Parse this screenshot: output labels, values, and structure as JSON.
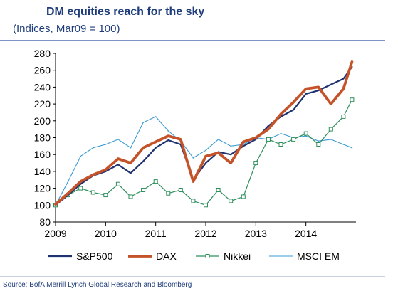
{
  "header": {
    "title": "DM equities reach for the sky",
    "subtitle": "(Indices, Mar09 = 100)"
  },
  "footer": {
    "source": "Source: BofA Merrill Lynch Global Research and Bloomberg"
  },
  "chart_data": {
    "type": "line",
    "title": "DM equities reach for the sky",
    "subtitle": "(Indices, Mar09 = 100)",
    "xlabel": "",
    "ylabel": "",
    "xlim": [
      2009.0,
      2015.0
    ],
    "ylim": [
      80,
      280
    ],
    "x_ticks": [
      2009,
      2010,
      2011,
      2012,
      2013,
      2014
    ],
    "x_tick_labels": [
      "2009",
      "2010",
      "2011",
      "2012",
      "2013",
      "2014"
    ],
    "y_ticks": [
      80,
      100,
      120,
      140,
      160,
      180,
      200,
      220,
      240,
      260,
      280
    ],
    "y_tick_labels": [
      "80",
      "100",
      "120",
      "140",
      "160",
      "180",
      "200",
      "220",
      "240",
      "260",
      "280"
    ],
    "grid": false,
    "legend_position": "bottom",
    "x": [
      2009.0,
      2009.25,
      2009.5,
      2009.75,
      2010.0,
      2010.25,
      2010.5,
      2010.75,
      2011.0,
      2011.25,
      2011.5,
      2011.75,
      2012.0,
      2012.25,
      2012.5,
      2012.75,
      2013.0,
      2013.25,
      2013.5,
      2013.75,
      2014.0,
      2014.25,
      2014.5,
      2014.75,
      2014.92
    ],
    "series": [
      {
        "name": "S&P500",
        "color": "#1f3370",
        "values": [
          100,
          112,
          125,
          135,
          140,
          148,
          138,
          152,
          168,
          177,
          172,
          130,
          150,
          163,
          160,
          170,
          178,
          194,
          205,
          213,
          232,
          236,
          243,
          250,
          264
        ]
      },
      {
        "name": "DAX",
        "color": "#c5532a",
        "values": [
          101,
          114,
          128,
          136,
          142,
          155,
          150,
          168,
          175,
          182,
          178,
          128,
          158,
          162,
          150,
          175,
          180,
          190,
          208,
          222,
          238,
          240,
          220,
          238,
          270
        ]
      },
      {
        "name": "Nikkei",
        "color": "#2f8f5c",
        "values": [
          100,
          112,
          120,
          115,
          112,
          125,
          110,
          118,
          128,
          114,
          118,
          105,
          100,
          118,
          105,
          110,
          150,
          178,
          172,
          178,
          185,
          172,
          190,
          205,
          225
        ]
      },
      {
        "name": "MSCI EM",
        "color": "#3a9bd5",
        "values": [
          100,
          128,
          158,
          168,
          172,
          178,
          168,
          198,
          205,
          188,
          176,
          156,
          165,
          178,
          170,
          172,
          180,
          178,
          185,
          180,
          182,
          176,
          178,
          172,
          168
        ]
      }
    ]
  }
}
